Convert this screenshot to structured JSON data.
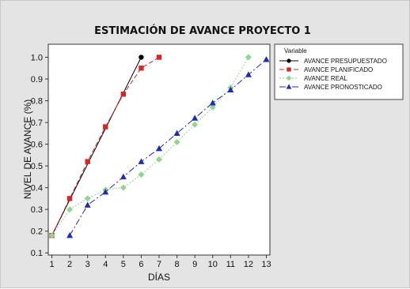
{
  "chart_data": {
    "type": "line",
    "title": "ESTIMACIÓN DE AVANCE PROYECTO 1",
    "xlabel": "DÍAS",
    "ylabel": "NIVEL DE AVANCE (%)",
    "xlim": [
      0.8,
      13.2
    ],
    "ylim": [
      0.09,
      1.06
    ],
    "xticks": [
      1,
      2,
      3,
      4,
      5,
      6,
      7,
      8,
      9,
      10,
      11,
      12,
      13
    ],
    "yticks": [
      0.1,
      0.2,
      0.3,
      0.4,
      0.5,
      0.6,
      0.7,
      0.8,
      0.9,
      1.0
    ],
    "ytick_labels": [
      "0.1",
      "0.2",
      "0.3",
      "0.4",
      "0.5",
      "0.6",
      "0.7",
      "0.8",
      "0.9",
      "1.0"
    ],
    "grid": false,
    "legend": {
      "title": "Variable",
      "position": "right"
    },
    "series": [
      {
        "name": "AVANCE PRESUPUESTADO",
        "color": "#000000",
        "marker": "circle",
        "dash": "",
        "x": [
          1,
          6
        ],
        "y": [
          0.18,
          1.0
        ]
      },
      {
        "name": "AVANCE PLANIFICADO",
        "color": "#d62728",
        "marker": "square",
        "dash": "6,3",
        "x": [
          1,
          2,
          3,
          4,
          5,
          6,
          7
        ],
        "y": [
          0.18,
          0.35,
          0.52,
          0.68,
          0.83,
          0.95,
          1.0
        ]
      },
      {
        "name": "AVANCE REAL",
        "color": "#8fd68f",
        "marker": "diamond",
        "dash": "2,2",
        "x": [
          1,
          2,
          3,
          4,
          5,
          6,
          7,
          8,
          9,
          10,
          11,
          12
        ],
        "y": [
          0.18,
          0.3,
          0.35,
          0.39,
          0.4,
          0.46,
          0.53,
          0.61,
          0.69,
          0.77,
          0.86,
          1.0
        ]
      },
      {
        "name": "AVANCE PRONOSTICADO",
        "color": "#1f2bb4",
        "marker": "triangle",
        "dash": "8,3,2,3",
        "x": [
          2,
          3,
          4,
          5,
          6,
          7,
          8,
          9,
          10,
          11,
          12,
          13
        ],
        "y": [
          0.18,
          0.32,
          0.38,
          0.45,
          0.52,
          0.58,
          0.65,
          0.72,
          0.79,
          0.85,
          0.92,
          0.99
        ]
      }
    ]
  }
}
